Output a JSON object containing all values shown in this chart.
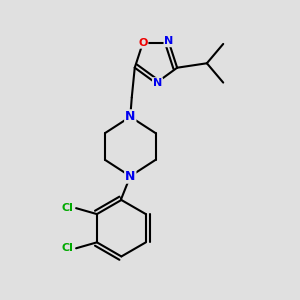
{
  "bg_color": "#e0e0e0",
  "bond_color": "#000000",
  "bond_width": 1.5,
  "atom_colors": {
    "N": "#0000ee",
    "O": "#ee0000",
    "Cl": "#00aa00",
    "C": "#000000"
  },
  "figsize": [
    3.0,
    3.0
  ],
  "dpi": 100,
  "xlim": [
    0,
    10
  ],
  "ylim": [
    0,
    10
  ]
}
